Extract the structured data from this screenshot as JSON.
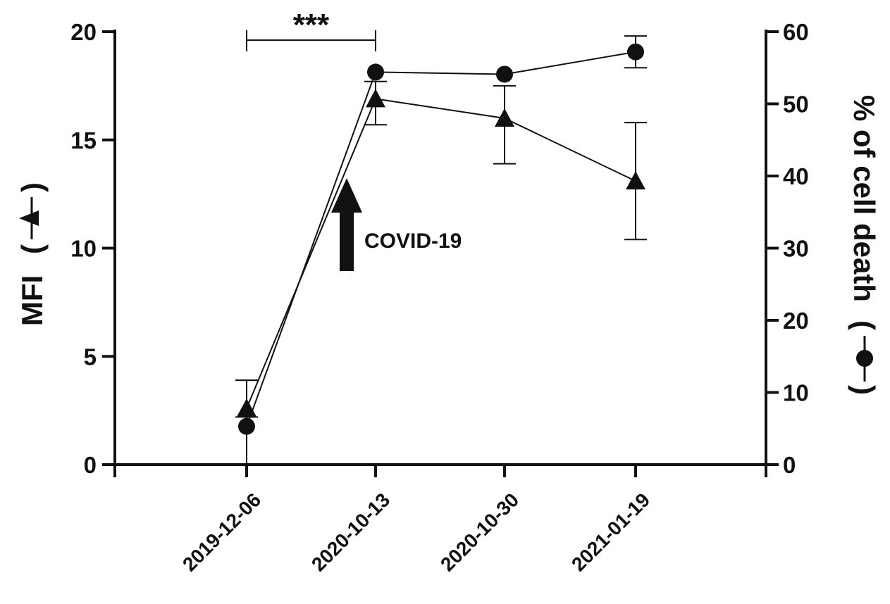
{
  "chart_data": {
    "type": "line",
    "categories": [
      "2019-12-06",
      "2020-10-13",
      "2020-10-30",
      "2021-01-19"
    ],
    "y_left": {
      "label": "MFI",
      "range": [
        0,
        20
      ],
      "ticks": [
        0,
        5,
        10,
        15,
        20
      ],
      "tick_labels": [
        "0",
        "5",
        "10",
        "15",
        "20"
      ]
    },
    "y_right": {
      "label": "% of cell death",
      "range": [
        0,
        60
      ],
      "ticks": [
        0,
        10,
        20,
        30,
        40,
        50,
        60
      ],
      "tick_labels": [
        "0",
        "10",
        "20",
        "30",
        "40",
        "50",
        "60"
      ]
    },
    "series": [
      {
        "marker": "triangle",
        "axis": "left",
        "values": [
          2.6,
          16.9,
          16.0,
          13.1
        ],
        "error_low": [
          2.2,
          15.7,
          13.9,
          10.4
        ],
        "error_high": [
          3.9,
          17.7,
          17.5,
          15.8
        ]
      },
      {
        "marker": "circle",
        "axis": "right",
        "values": [
          5.3,
          54.4,
          54.1,
          57.2
        ],
        "error_low": [
          0.0,
          54.4,
          54.1,
          55.0
        ],
        "error_high": [
          11.7,
          54.4,
          54.1,
          59.4
        ]
      }
    ],
    "annotations": {
      "significance": "***",
      "event_label": "COVID-19"
    },
    "legend_glyph_paren_open": "(",
    "legend_glyph_paren_close": ")",
    "grid": false,
    "legend": "none"
  }
}
